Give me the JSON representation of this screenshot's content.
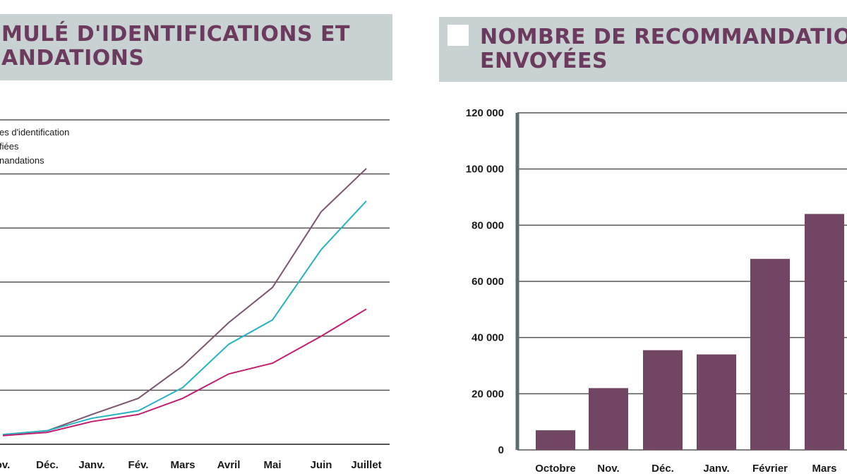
{
  "left_title": {
    "line1": "MULÉ D'IDENTIFICATIONS ET",
    "line2": "ANDATIONS"
  },
  "right_title": {
    "line1": "NOMBRE DE RECOMMANDATION",
    "line2": "ENVOYÉES"
  },
  "colors": {
    "title_bg": "#c9d2d2",
    "title_text": "#6b3a5e",
    "bar": "#714662",
    "line_purple": "#7a5670",
    "line_cyan": "#25b3c4",
    "line_magenta": "#c21f6e",
    "grid": "#555555"
  },
  "chart_data": [
    {
      "type": "line",
      "title": "",
      "legend": [
        "es d'identification",
        "fiées",
        "nandations"
      ],
      "categories": [
        "ov.",
        "Déc.",
        "Janv.",
        "Fév.",
        "Mars",
        "Avril",
        "Mai",
        "Juin",
        "Juillet"
      ],
      "ylim": [
        0,
        6
      ],
      "grid": true,
      "series": [
        {
          "name": "es d'identification",
          "color": "#7a5670",
          "values": [
            0.18,
            0.25,
            0.55,
            0.85,
            1.45,
            2.25,
            2.9,
            4.3,
            5.1
          ]
        },
        {
          "name": "fiées",
          "color": "#25b3c4",
          "values": [
            0.18,
            0.25,
            0.48,
            0.62,
            1.05,
            1.85,
            2.3,
            3.6,
            4.5
          ]
        },
        {
          "name": "nandations",
          "color": "#c21f6e",
          "values": [
            0.16,
            0.22,
            0.42,
            0.55,
            0.85,
            1.3,
            1.5,
            2.0,
            2.5
          ]
        }
      ]
    },
    {
      "type": "bar",
      "title": "",
      "categories": [
        "Octobre",
        "Nov.",
        "Déc.",
        "Janv.",
        "Février",
        "Mars"
      ],
      "values": [
        7000,
        22000,
        35500,
        34000,
        68000,
        84000
      ],
      "yticks": [
        "0",
        "20 000",
        "40 000",
        "60 000",
        "80 000",
        "100 000",
        "120 000"
      ],
      "ylim": [
        0,
        120000
      ],
      "grid": true
    }
  ]
}
